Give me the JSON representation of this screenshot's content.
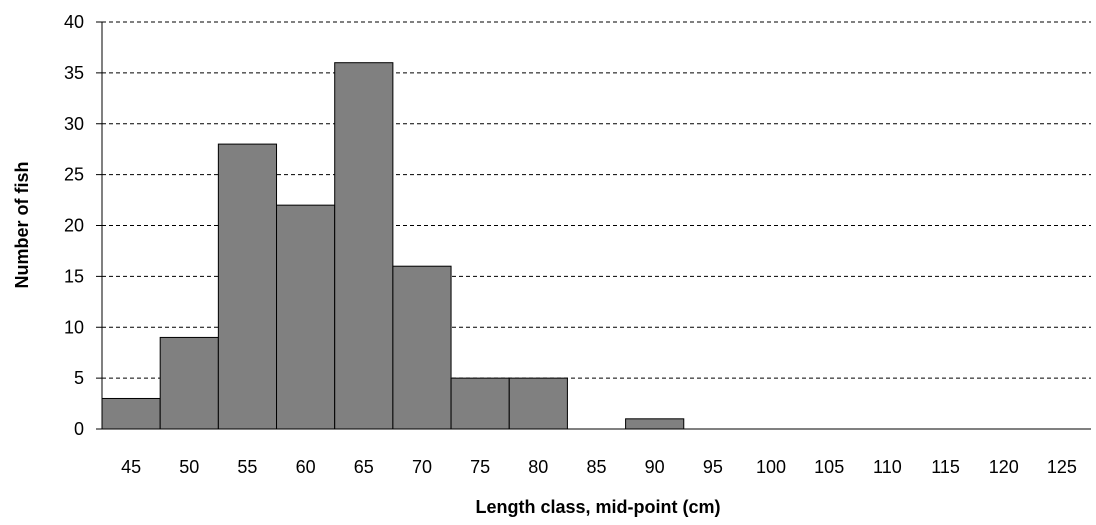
{
  "chart_data": {
    "type": "bar",
    "title": "",
    "xlabel": "Length class, mid-point (cm)",
    "ylabel": "Number of fish",
    "categories": [
      "45",
      "50",
      "55",
      "60",
      "65",
      "70",
      "75",
      "80",
      "85",
      "90",
      "95",
      "100",
      "105",
      "110",
      "115",
      "120",
      "125"
    ],
    "values": [
      3,
      9,
      28,
      22,
      36,
      16,
      5,
      5,
      0,
      1,
      0,
      0,
      0,
      0,
      0,
      0,
      0
    ],
    "ylim": [
      0,
      40
    ],
    "yticks": [
      0,
      5,
      10,
      15,
      20,
      25,
      30,
      35,
      40
    ],
    "grid": true,
    "colors": {
      "bar": "#808080",
      "bar_edge": "#000000",
      "grid": "#000000"
    }
  }
}
